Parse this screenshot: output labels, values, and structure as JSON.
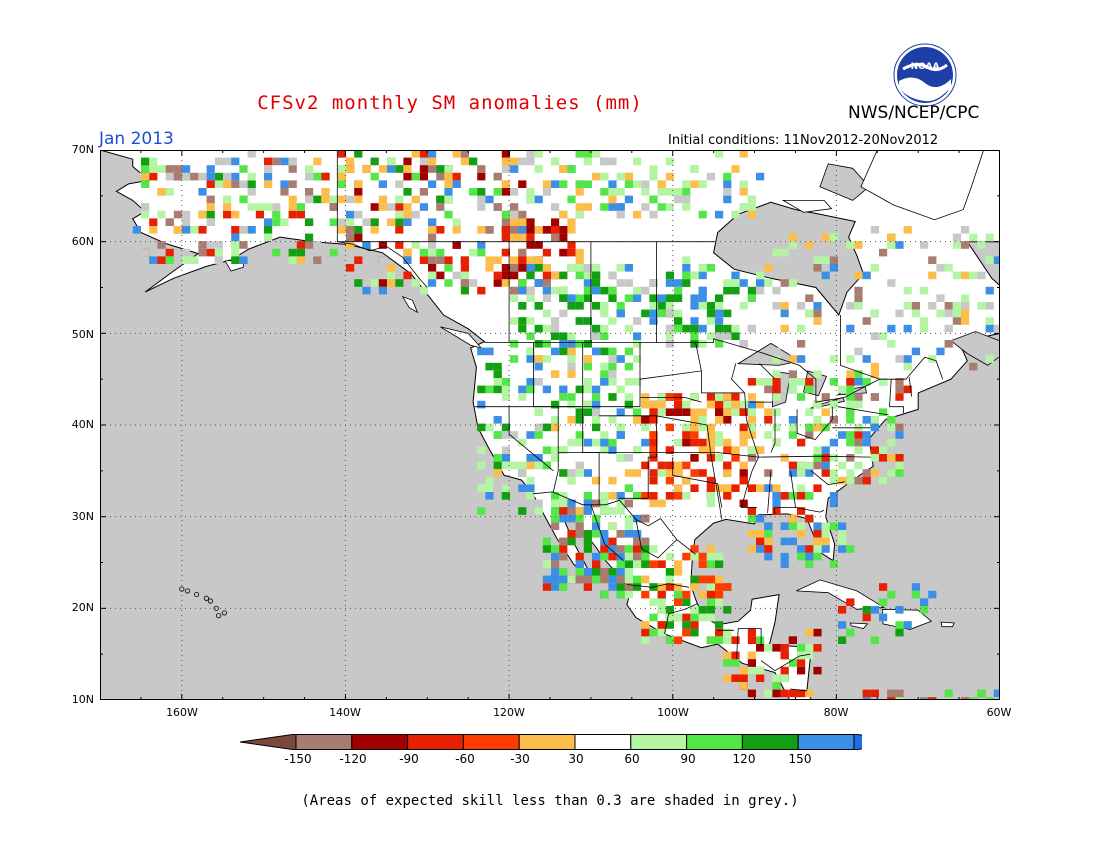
{
  "title": "CFSv2 monthly SM anomalies (mm)",
  "agency": "NWS/NCEP/CPC",
  "logo_text": "NOAA",
  "month_label": "Jan 2013",
  "initial_conditions": "Initial conditions: 11Nov2012-20Nov2012",
  "footnote": "(Areas of expected skill less than 0.3 are shaded in grey.)",
  "lat_labels": [
    "70N",
    "60N",
    "50N",
    "40N",
    "30N",
    "20N",
    "10N"
  ],
  "lon_labels": [
    "160W",
    "140W",
    "120W",
    "100W",
    "80W",
    "60W"
  ],
  "colorbar": {
    "ticks": [
      "-150",
      "-120",
      "-90",
      "-60",
      "-30",
      "30",
      "60",
      "90",
      "120",
      "150"
    ],
    "colors": [
      "#7a4a3a",
      "#a97c72",
      "#a00000",
      "#e62000",
      "#ff3c00",
      "#fdbd4a",
      "#ffffff",
      "#b4f5a4",
      "#54e648",
      "#12a012",
      "#3c8fe6",
      "#1e6ee6"
    ]
  },
  "map": {
    "projection": "cylindrical",
    "lon_range": [
      -170,
      -60
    ],
    "lat_range": [
      10,
      70
    ],
    "ocean_color": "#c8c8c8",
    "land_color": "#ffffff",
    "grey_mask_color": "#c8c8c8"
  }
}
